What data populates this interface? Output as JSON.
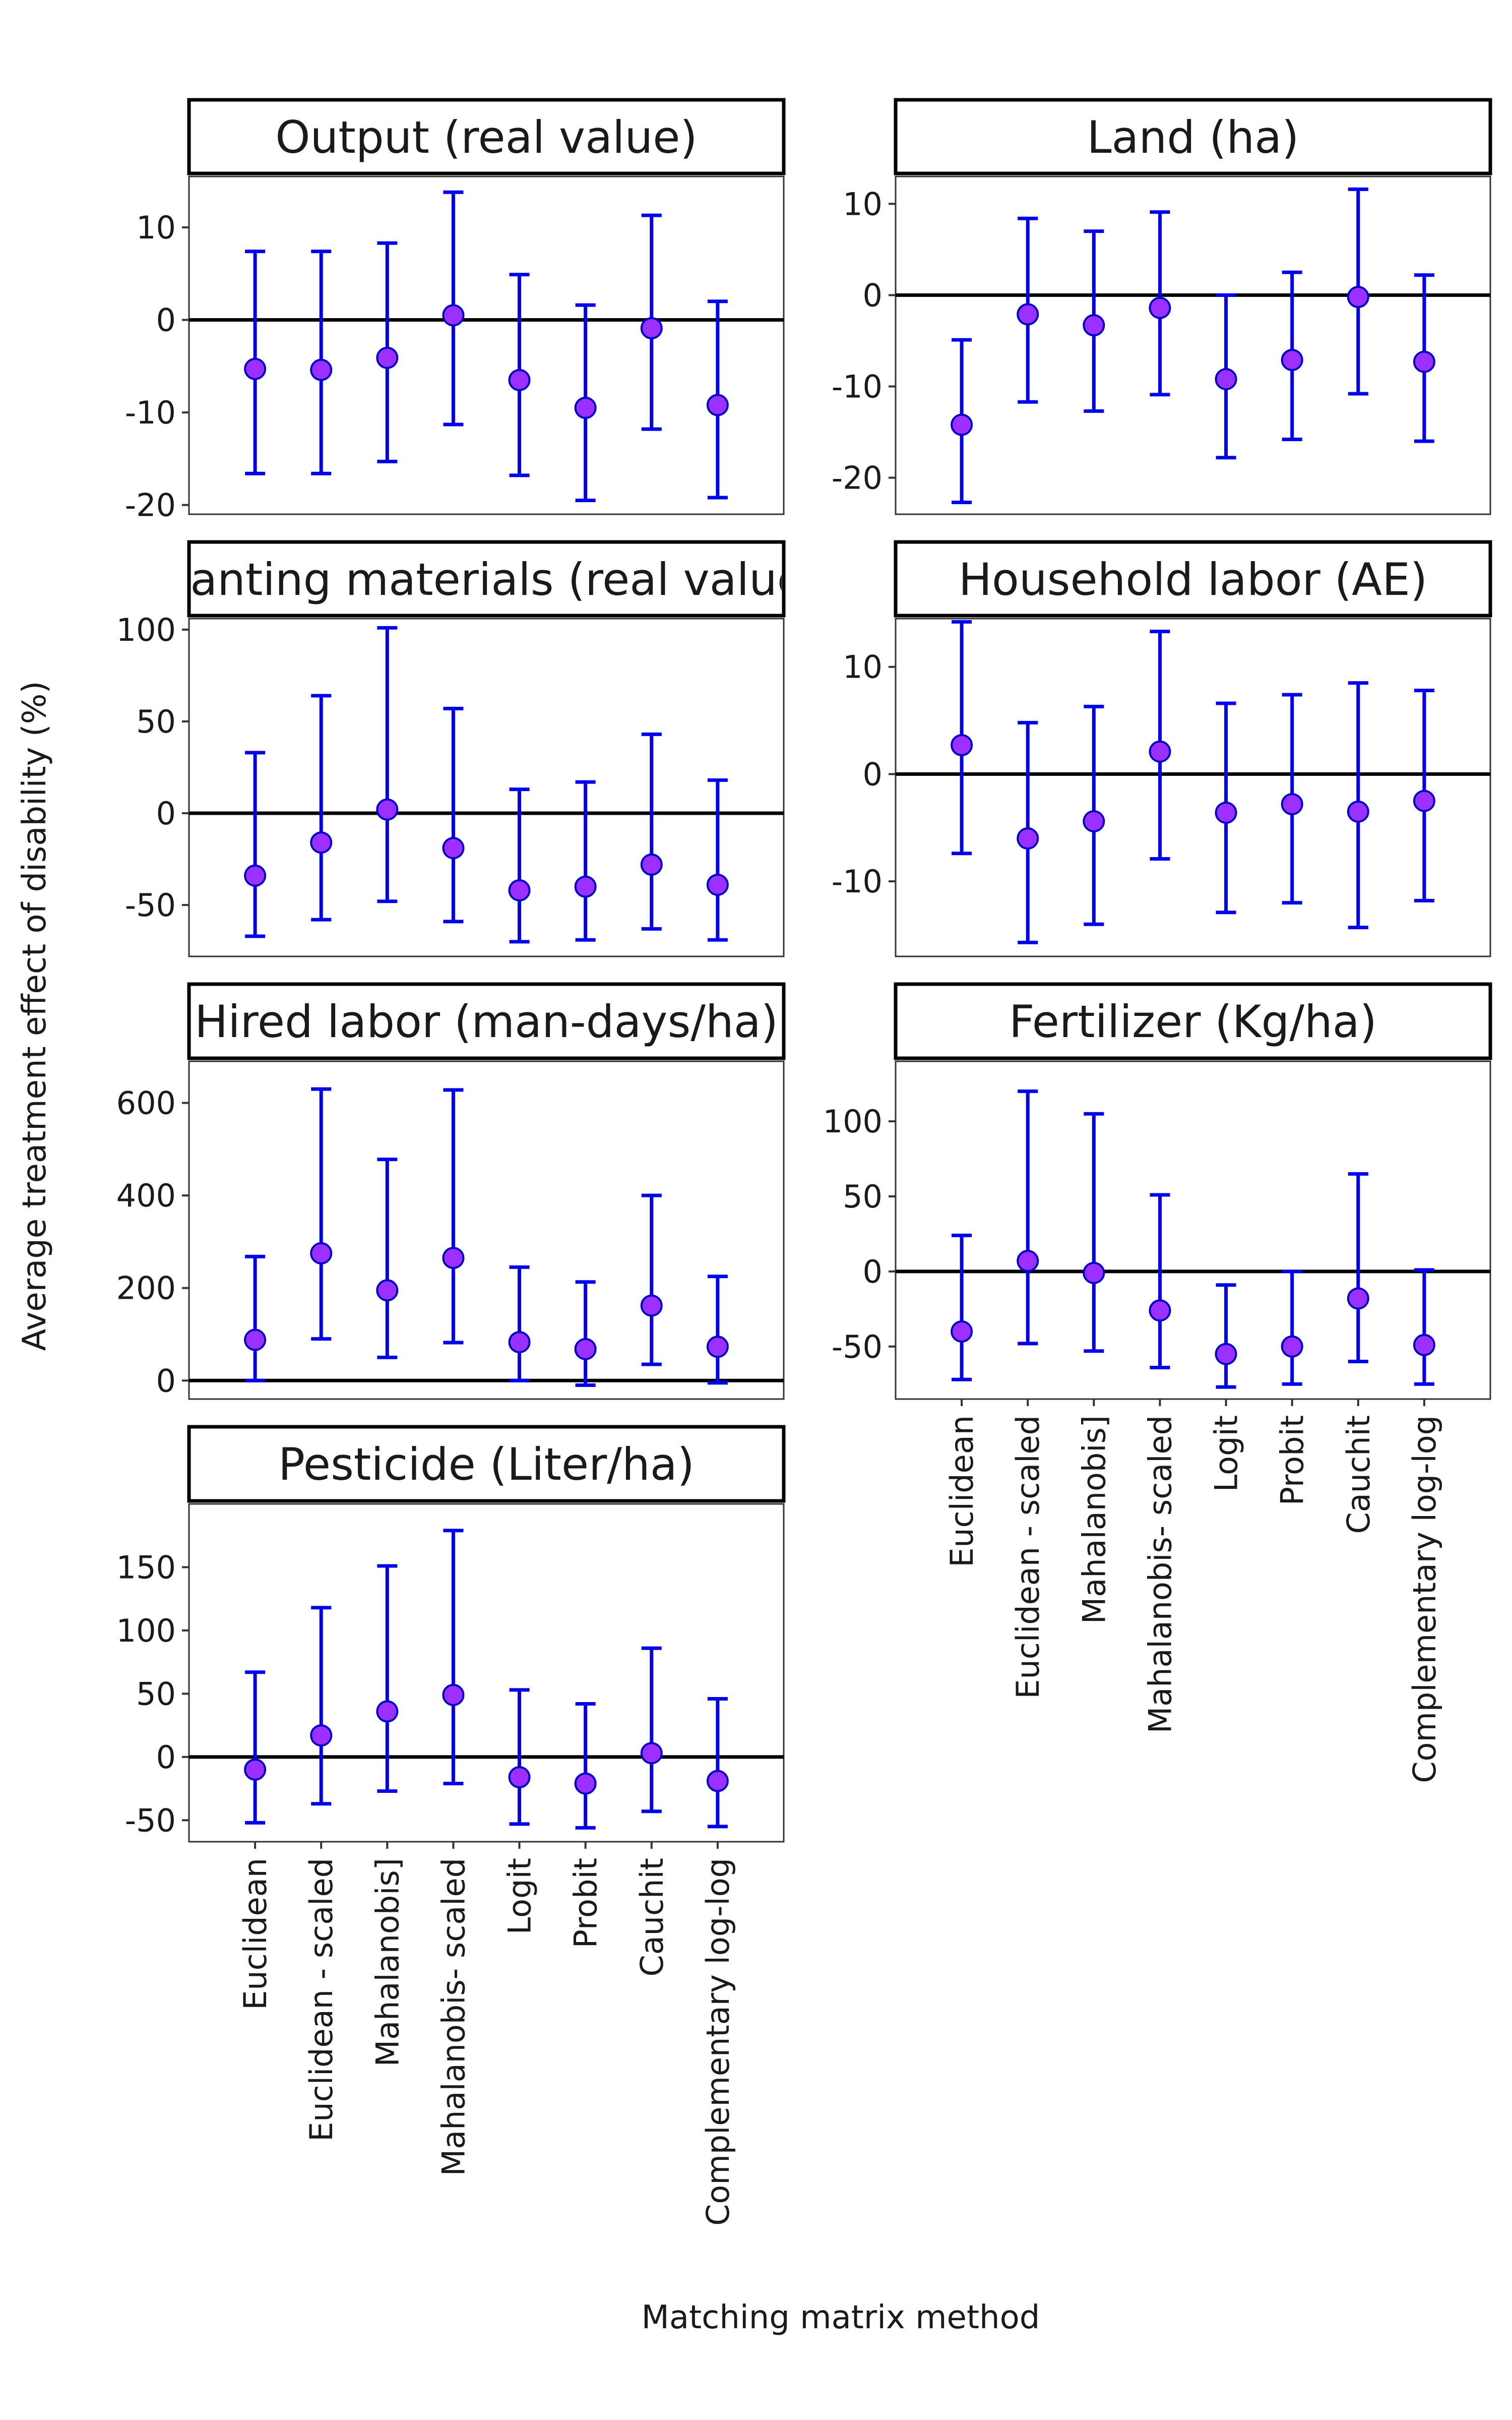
{
  "figure": {
    "ylabel": "Average treatment effect of disability (%)",
    "xlabel": "Matching matrix method",
    "methods": [
      "Euclidean",
      "Euclidean - scaled",
      "Mahalanobis]",
      "Mahalanobis- scaled",
      "Logit",
      "Probit",
      "Cauchit",
      "Complementary log-log"
    ],
    "colors": {
      "errorbar": "#0000ee",
      "point_fill": "#9b30ff",
      "point_stroke": "#0000cc",
      "zero_line": "#000000",
      "panel_border": "#333333"
    }
  },
  "chart_data": [
    {
      "type": "scatter",
      "title": "Output (real value)",
      "ylim": [
        -21,
        15.5
      ],
      "yticks": [
        -20,
        -10,
        0,
        10
      ],
      "ytick_labels": [
        "-20",
        "-10",
        "0",
        "10"
      ],
      "categories": [
        "Euclidean",
        "Euclidean - scaled",
        "Mahalanobis]",
        "Mahalanobis- scaled",
        "Logit",
        "Probit",
        "Cauchit",
        "Complementary log-log"
      ],
      "estimate": [
        -5.3,
        -5.4,
        -4.1,
        0.5,
        -6.5,
        -9.5,
        -0.9,
        -9.2
      ],
      "lower": [
        -16.6,
        -16.6,
        -15.3,
        -11.3,
        -16.8,
        -19.5,
        -11.8,
        -19.2
      ],
      "upper": [
        7.4,
        7.4,
        8.3,
        13.8,
        4.9,
        1.6,
        11.3,
        2.0
      ]
    },
    {
      "type": "scatter",
      "title": "Land (ha)",
      "ylim": [
        -24,
        13
      ],
      "yticks": [
        -20,
        -10,
        0,
        10
      ],
      "ytick_labels": [
        "-20",
        "-10",
        "0",
        "10"
      ],
      "categories": [
        "Euclidean",
        "Euclidean - scaled",
        "Mahalanobis]",
        "Mahalanobis- scaled",
        "Logit",
        "Probit",
        "Cauchit",
        "Complementary log-log"
      ],
      "estimate": [
        -14.2,
        -2.1,
        -3.3,
        -1.4,
        -9.2,
        -7.1,
        -0.2,
        -7.3
      ],
      "lower": [
        -22.7,
        -11.7,
        -12.7,
        -10.9,
        -17.8,
        -15.8,
        -10.8,
        -16.0
      ],
      "upper": [
        -4.9,
        8.4,
        7.0,
        9.1,
        0.0,
        2.5,
        11.6,
        2.2
      ]
    },
    {
      "type": "scatter",
      "title": "Planting materials (real value)",
      "ylim": [
        -78,
        106
      ],
      "yticks": [
        -50,
        0,
        50,
        100
      ],
      "ytick_labels": [
        "-50",
        "0",
        "50",
        "100"
      ],
      "categories": [
        "Euclidean",
        "Euclidean - scaled",
        "Mahalanobis]",
        "Mahalanobis- scaled",
        "Logit",
        "Probit",
        "Cauchit",
        "Complementary log-log"
      ],
      "estimate": [
        -34,
        -16,
        2,
        -19,
        -42,
        -40,
        -28,
        -39
      ],
      "lower": [
        -67,
        -58,
        -48,
        -59,
        -70,
        -69,
        -63,
        -69
      ],
      "upper": [
        33,
        64,
        101,
        57,
        13,
        17,
        43,
        18
      ]
    },
    {
      "type": "scatter",
      "title": "Household labor (AE)",
      "ylim": [
        -17,
        14.5
      ],
      "yticks": [
        -10,
        0,
        10
      ],
      "ytick_labels": [
        "-10",
        "0",
        "10"
      ],
      "categories": [
        "Euclidean",
        "Euclidean - scaled",
        "Mahalanobis]",
        "Mahalanobis- scaled",
        "Logit",
        "Probit",
        "Cauchit",
        "Complementary log-log"
      ],
      "estimate": [
        2.7,
        -6.0,
        -4.4,
        2.1,
        -3.6,
        -2.8,
        -3.5,
        -2.5
      ],
      "lower": [
        -7.4,
        -15.7,
        -14.0,
        -7.9,
        -12.9,
        -12.0,
        -14.3,
        -11.8
      ],
      "upper": [
        14.2,
        4.8,
        6.3,
        13.3,
        6.6,
        7.4,
        8.5,
        7.8
      ]
    },
    {
      "type": "scatter",
      "title": "Hired labor (man-days/ha)",
      "ylim": [
        -40,
        690
      ],
      "yticks": [
        0,
        200,
        400,
        600
      ],
      "ytick_labels": [
        "0",
        "200",
        "400",
        "600"
      ],
      "categories": [
        "Euclidean",
        "Euclidean - scaled",
        "Mahalanobis]",
        "Mahalanobis- scaled",
        "Logit",
        "Probit",
        "Cauchit",
        "Complementary log-log"
      ],
      "estimate": [
        88,
        275,
        195,
        265,
        83,
        68,
        162,
        73
      ],
      "lower": [
        0,
        90,
        50,
        82,
        0,
        -10,
        35,
        -5
      ],
      "upper": [
        268,
        630,
        478,
        628,
        245,
        213,
        400,
        225
      ]
    },
    {
      "type": "scatter",
      "title": "Fertilizer (Kg/ha)",
      "ylim": [
        -85,
        140
      ],
      "yticks": [
        -50,
        0,
        50,
        100
      ],
      "ytick_labels": [
        "-50",
        "0",
        "50",
        "100"
      ],
      "categories": [
        "Euclidean",
        "Euclidean - scaled",
        "Mahalanobis]",
        "Mahalanobis- scaled",
        "Logit",
        "Probit",
        "Cauchit",
        "Complementary log-log"
      ],
      "estimate": [
        -40,
        7,
        -1,
        -26,
        -55,
        -50,
        -18,
        -49
      ],
      "lower": [
        -72,
        -48,
        -53,
        -64,
        -77,
        -75,
        -60,
        -75
      ],
      "upper": [
        24,
        120,
        105,
        51,
        -9,
        0,
        65,
        1
      ]
    },
    {
      "type": "scatter",
      "title": "Pesticide (Liter/ha)",
      "ylim": [
        -67,
        200
      ],
      "yticks": [
        -50,
        0,
        50,
        100,
        150
      ],
      "ytick_labels": [
        "-50",
        "0",
        "50",
        "100",
        "150"
      ],
      "categories": [
        "Euclidean",
        "Euclidean - scaled",
        "Mahalanobis]",
        "Mahalanobis- scaled",
        "Logit",
        "Probit",
        "Cauchit",
        "Complementary log-log"
      ],
      "estimate": [
        -10,
        17,
        36,
        49,
        -16,
        -21,
        3,
        -19
      ],
      "lower": [
        -52,
        -37,
        -27,
        -21,
        -53,
        -56,
        -43,
        -55
      ],
      "upper": [
        67,
        118,
        151,
        179,
        53,
        42,
        86,
        46
      ]
    }
  ]
}
